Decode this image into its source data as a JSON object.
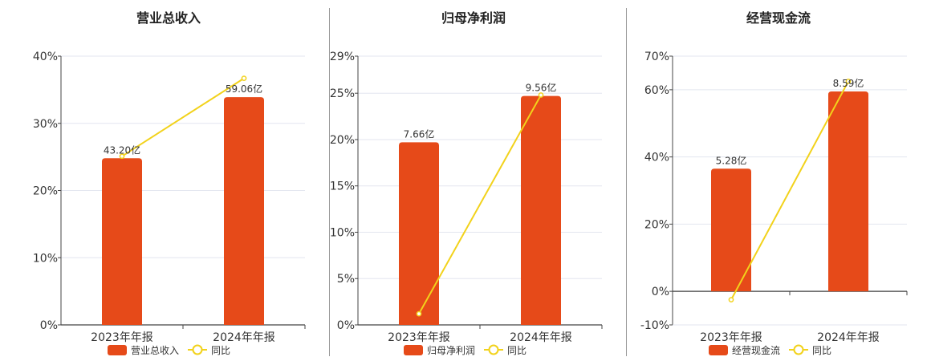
{
  "colors": {
    "bar": "#E64A19",
    "line": "#F2D21B",
    "grid": "#E3E6EF",
    "axis": "#444444"
  },
  "chart_data": [
    {
      "type": "bar",
      "title": "营业总收入",
      "categories": [
        "2023年年报",
        "2024年年报"
      ],
      "ylim": [
        0,
        40
      ],
      "yticks": [
        "0%",
        "10%",
        "20%",
        "30%",
        "40%"
      ],
      "ytick_values": [
        0,
        10,
        20,
        30,
        40
      ],
      "series": [
        {
          "name": "营业总收入",
          "type": "bar",
          "values": [
            24.8,
            33.9
          ],
          "labels": [
            "43.20亿",
            "59.06亿"
          ]
        },
        {
          "name": "同比",
          "type": "line",
          "values": [
            25.1,
            36.7
          ]
        }
      ],
      "grid": true,
      "legend": "bottom-center"
    },
    {
      "type": "bar",
      "title": "归母净利润",
      "categories": [
        "2023年年报",
        "2024年年报"
      ],
      "ylim": [
        0,
        29
      ],
      "yticks": [
        "0%",
        "5%",
        "10%",
        "15%",
        "20%",
        "25%",
        "29%"
      ],
      "ytick_values": [
        0,
        5,
        10,
        15,
        20,
        25,
        29
      ],
      "series": [
        {
          "name": "归母净利润",
          "type": "bar",
          "values": [
            19.7,
            24.7
          ],
          "labels": [
            "7.66亿",
            "9.56亿"
          ]
        },
        {
          "name": "同比",
          "type": "line",
          "values": [
            1.2,
            24.8
          ]
        }
      ],
      "grid": true,
      "legend": "bottom-center"
    },
    {
      "type": "bar",
      "title": "经营现金流",
      "categories": [
        "2023年年报",
        "2024年年报"
      ],
      "ylim": [
        -10,
        70
      ],
      "yticks": [
        "-10%",
        "0%",
        "20%",
        "40%",
        "60%",
        "70%"
      ],
      "ytick_values": [
        -10,
        0,
        20,
        40,
        60,
        70
      ],
      "series": [
        {
          "name": "经营现金流",
          "type": "bar",
          "values": [
            36.5,
            59.5
          ],
          "labels": [
            "5.28亿",
            "8.59亿"
          ]
        },
        {
          "name": "同比",
          "type": "line",
          "values": [
            -2.5,
            62.5
          ]
        }
      ],
      "grid": true,
      "legend": "bottom-center"
    }
  ]
}
